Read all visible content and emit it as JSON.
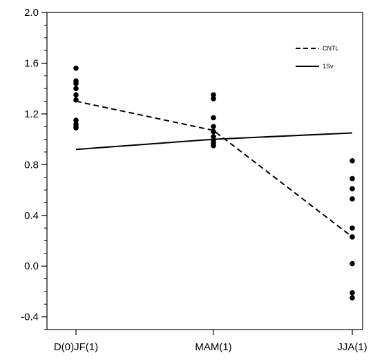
{
  "chart_data": {
    "type": "line",
    "title": "",
    "xlabel": "",
    "ylabel": "",
    "categories": [
      "D(0)JF(1)",
      "MAM(1)",
      "JJA(1)"
    ],
    "ylim": [
      -0.5,
      2.0
    ],
    "yticks": [
      -0.4,
      0.0,
      0.4,
      0.8,
      1.2,
      1.6,
      2.0
    ],
    "ytick_labels": [
      "-0.4",
      "0.0",
      "0.4",
      "0.8",
      "1.2",
      "1.6",
      "2.0"
    ],
    "grid": false,
    "legend_position": "top-right",
    "series": [
      {
        "name": "CNTL",
        "style": "dashed",
        "values": [
          1.3,
          1.07,
          0.23
        ]
      },
      {
        "name": "1Sv",
        "style": "solid",
        "values": [
          0.92,
          1.0,
          1.05
        ]
      }
    ],
    "scatter": [
      {
        "category": "D(0)JF(1)",
        "values": [
          1.56,
          1.46,
          1.44,
          1.4,
          1.35,
          1.31,
          1.15,
          1.12,
          1.1,
          1.09
        ]
      },
      {
        "category": "MAM(1)",
        "values": [
          1.35,
          1.32,
          1.17,
          1.1,
          1.06,
          1.02,
          0.99,
          0.97,
          0.95
        ]
      },
      {
        "category": "JJA(1)",
        "values": [
          0.83,
          0.69,
          0.61,
          0.53,
          0.3,
          0.23,
          0.02,
          -0.21,
          -0.25
        ]
      }
    ],
    "colors": {
      "line": "#000000",
      "dots": "#000000",
      "axis": "#000000"
    }
  }
}
